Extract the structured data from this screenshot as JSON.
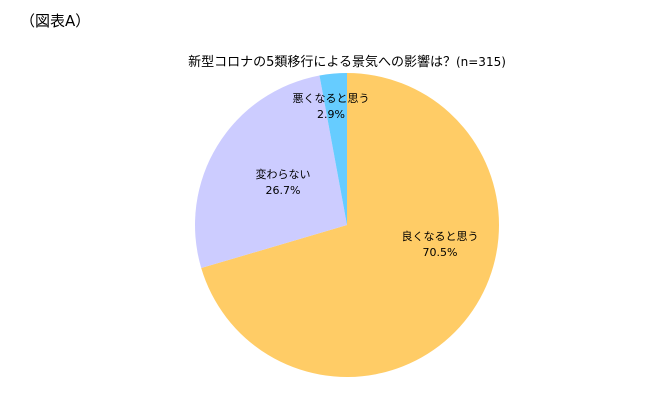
{
  "figure_label": "（図表A）",
  "chart_data": {
    "type": "pie",
    "title": "新型コロナの5類移行による景気への影響は？",
    "subtitle": "(n=315)",
    "start": "12 o'clock",
    "direction": "clockwise",
    "slices": [
      {
        "label": "良くなると思う",
        "value": 70.5,
        "value_label": "70.5%",
        "color": "#FFCC66"
      },
      {
        "label": "変わらない",
        "value": 26.7,
        "value_label": "26.7%",
        "color": "#CCCCFF"
      },
      {
        "label": "悪くなると思う",
        "value": 2.9,
        "value_label": "2.9%",
        "color": "#66CCFF"
      }
    ]
  }
}
